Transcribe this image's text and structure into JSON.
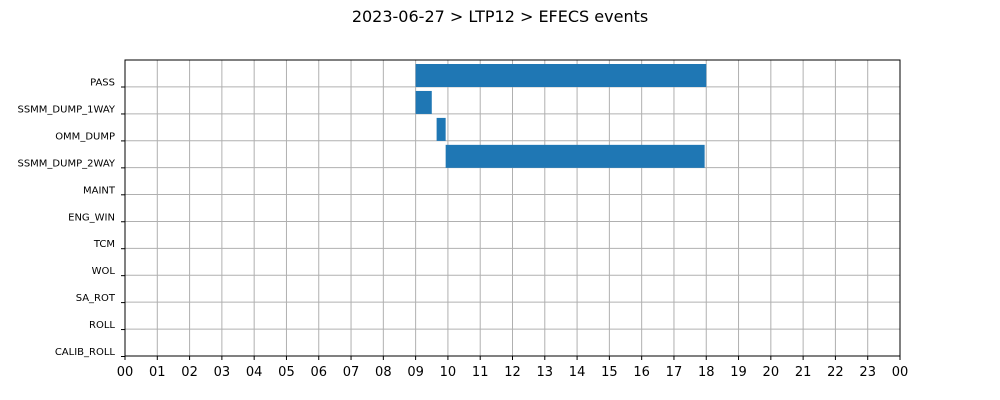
{
  "chart_data": {
    "type": "gantt",
    "title": "2023-06-27 > LTP12 > EFECS events",
    "categories": [
      "PASS",
      "SSMM_DUMP_1WAY",
      "OMM_DUMP",
      "SSMM_DUMP_2WAY",
      "MAINT",
      "ENG_WIN",
      "TCM",
      "WOL",
      "SA_ROT",
      "ROLL",
      "CALIB_ROLL"
    ],
    "x_tick_labels": [
      "00",
      "01",
      "02",
      "03",
      "04",
      "05",
      "06",
      "07",
      "08",
      "09",
      "10",
      "11",
      "12",
      "13",
      "14",
      "15",
      "16",
      "17",
      "18",
      "19",
      "20",
      "21",
      "22",
      "23",
      "00"
    ],
    "xlim": [
      0,
      24
    ],
    "grid": true,
    "events": [
      {
        "category": "PASS",
        "start": 9.0,
        "end": 18.0
      },
      {
        "category": "SSMM_DUMP_1WAY",
        "start": 9.0,
        "end": 9.5
      },
      {
        "category": "OMM_DUMP",
        "start": 9.65,
        "end": 9.93
      },
      {
        "category": "SSMM_DUMP_2WAY",
        "start": 9.93,
        "end": 17.95
      }
    ],
    "colors": {
      "bar": "#1f77b4",
      "grid": "#b0b0b0"
    }
  }
}
